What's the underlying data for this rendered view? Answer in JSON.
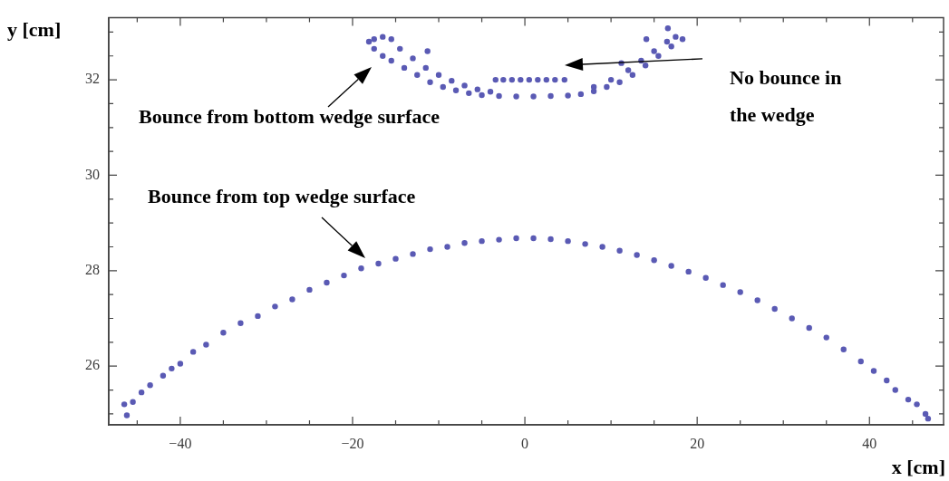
{
  "chart_data": {
    "type": "scatter",
    "xlabel": "x [cm]",
    "ylabel": "y [cm]",
    "xlim": [
      -48.3,
      48.6
    ],
    "ylim": [
      24.77,
      33.3
    ],
    "xticks": [
      {
        "value": -45,
        "label": null
      },
      {
        "value": -40,
        "label": "−40"
      },
      {
        "value": -35,
        "label": null
      },
      {
        "value": -30,
        "label": null
      },
      {
        "value": -25,
        "label": null
      },
      {
        "value": -20,
        "label": "−20"
      },
      {
        "value": -15,
        "label": null
      },
      {
        "value": -10,
        "label": null
      },
      {
        "value": -5,
        "label": null
      },
      0,
      {
        "value": 5,
        "label": null
      },
      {
        "value": 10,
        "label": null
      },
      {
        "value": 15,
        "label": null
      },
      20,
      {
        "value": 25,
        "label": null
      },
      {
        "value": 30,
        "label": null
      },
      {
        "value": 35,
        "label": null
      },
      40,
      {
        "value": 45,
        "label": null
      }
    ],
    "yticks": [
      {
        "value": 25,
        "label": null
      },
      {
        "value": 25.5,
        "label": null
      },
      26,
      {
        "value": 26.5,
        "label": null
      },
      {
        "value": 27,
        "label": null
      },
      {
        "value": 27.5,
        "label": null
      },
      28,
      {
        "value": 28.5,
        "label": null
      },
      {
        "value": 29,
        "label": null
      },
      {
        "value": 29.5,
        "label": null
      },
      30,
      {
        "value": 30.5,
        "label": null
      },
      {
        "value": 31,
        "label": null
      },
      {
        "value": 31.5,
        "label": null
      },
      32,
      {
        "value": 32.5,
        "label": null
      },
      {
        "value": 33,
        "label": null
      }
    ],
    "grid": false,
    "legend": false,
    "marker": "circle",
    "series": [
      {
        "color": "#5a5ab4",
        "x": [
          -46.5,
          -46.2,
          -45.5,
          -44.5,
          -43.5,
          -42,
          -41,
          -40,
          -38.5,
          -37,
          -35,
          -33,
          -31,
          -29,
          -27,
          -25,
          -23,
          -21,
          -19,
          -17,
          -15,
          -13,
          -11,
          -9,
          -7,
          -5,
          -3,
          -1,
          1,
          3,
          5,
          7,
          9,
          11,
          13,
          15,
          17,
          19,
          21,
          23,
          25,
          27,
          29,
          31,
          33,
          35,
          37,
          39,
          40.5,
          42,
          43,
          44.5,
          45.5,
          46.5,
          46.8
        ],
        "values": [
          25.2,
          24.97,
          25.25,
          25.45,
          25.6,
          25.8,
          25.95,
          26.05,
          26.3,
          26.45,
          26.7,
          26.9,
          27.05,
          27.25,
          27.4,
          27.6,
          27.75,
          27.9,
          28.05,
          28.15,
          28.25,
          28.35,
          28.45,
          28.5,
          28.58,
          28.62,
          28.65,
          28.68,
          28.68,
          28.66,
          28.62,
          28.56,
          28.5,
          28.42,
          28.33,
          28.22,
          28.1,
          27.98,
          27.85,
          27.7,
          27.55,
          27.38,
          27.2,
          27.0,
          26.8,
          26.6,
          26.35,
          26.1,
          25.9,
          25.7,
          25.5,
          25.3,
          25.2,
          25.0,
          24.9
        ]
      },
      {
        "color": "#5a5ab4",
        "x": [
          -18.1,
          -17.5,
          -16.5,
          -15.5,
          -14.5,
          -13,
          -11.5,
          -10,
          -8.5,
          -7,
          -5.5,
          -4,
          -17.5,
          -16.5,
          -15.5,
          -14,
          -12.5,
          -11,
          -9.5,
          -8,
          -6.5,
          -5,
          -3,
          -1,
          1,
          3,
          5,
          6.5,
          8,
          9.5,
          11,
          12.5,
          14,
          15.5,
          17,
          18.3,
          8,
          10,
          12,
          13.5,
          15,
          16.5,
          17.5,
          16.6,
          -11.3,
          14.1,
          11.2
        ],
        "values": [
          32.8,
          32.85,
          32.9,
          32.85,
          32.65,
          32.45,
          32.25,
          32.1,
          31.98,
          31.88,
          31.8,
          31.75,
          32.65,
          32.5,
          32.4,
          32.25,
          32.1,
          31.95,
          31.85,
          31.78,
          31.72,
          31.68,
          31.66,
          31.65,
          31.65,
          31.66,
          31.67,
          31.7,
          31.76,
          31.85,
          31.95,
          32.1,
          32.3,
          32.5,
          32.7,
          32.85,
          31.85,
          32.0,
          32.2,
          32.4,
          32.6,
          32.8,
          32.9,
          33.08,
          32.6,
          32.85,
          32.35
        ]
      },
      {
        "color": "#5a5ab4",
        "x": [
          -3.4,
          -2.5,
          -1.5,
          -0.5,
          0.5,
          1.5,
          2.5,
          3.5,
          4.6
        ],
        "values": [
          32.0,
          32.0,
          32.0,
          32.0,
          32.0,
          32.0,
          32.0,
          32.0,
          32.0
        ]
      }
    ],
    "annotations": [
      "Bounce from bottom wedge surface",
      "No bounce in the wedge",
      "Bounce from top wedge surface"
    ]
  }
}
